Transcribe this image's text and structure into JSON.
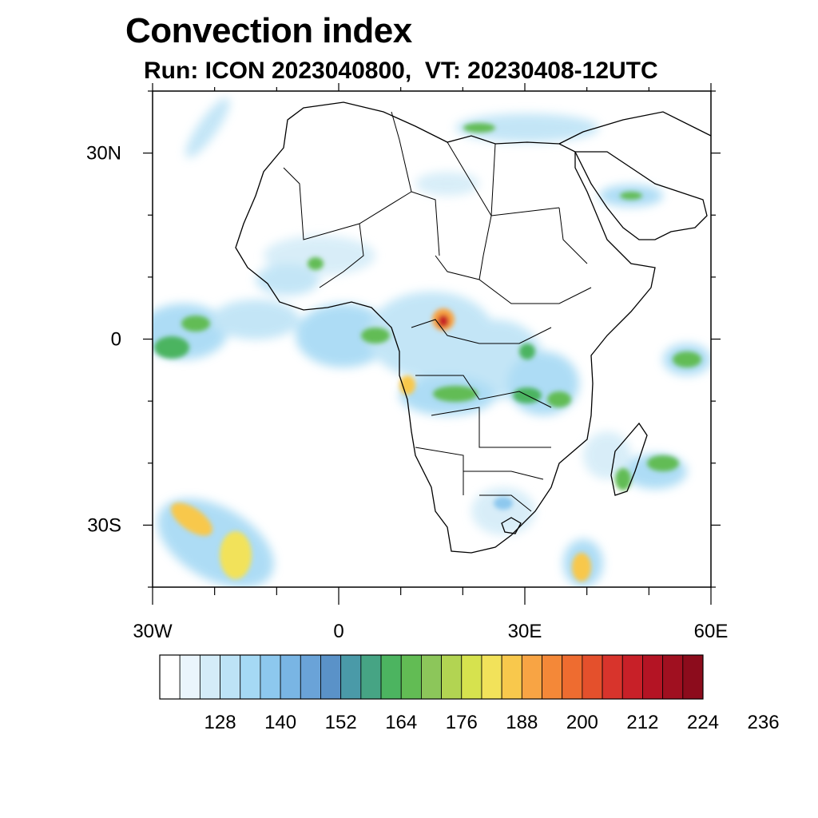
{
  "title": "Convection index",
  "subtitle": "Run: ICON 2023040800,  VT: 20230408-12UTC",
  "map": {
    "extent": {
      "lon": [
        -30,
        60
      ],
      "lat": [
        -40,
        40
      ]
    },
    "lat_ticks": [
      {
        "value": 30,
        "label": "30N"
      },
      {
        "value": 0,
        "label": "0"
      },
      {
        "value": -30,
        "label": "30S"
      }
    ],
    "lon_ticks": [
      {
        "value": -30,
        "label": "30W"
      },
      {
        "value": 0,
        "label": "0"
      },
      {
        "value": 30,
        "label": "30E"
      },
      {
        "value": 60,
        "label": "60E"
      }
    ]
  },
  "colorbar": {
    "labels": [
      "128",
      "140",
      "152",
      "164",
      "176",
      "188",
      "200",
      "212",
      "224",
      "236"
    ],
    "colors": [
      "#ffffff",
      "#eaf5fc",
      "#d4ecf8",
      "#bde3f6",
      "#a5d9f4",
      "#8dc8ee",
      "#79b5e4",
      "#6aa3d8",
      "#5a92c8",
      "#4a9aa8",
      "#46a484",
      "#4cb460",
      "#62bc54",
      "#8cc65a",
      "#b2d452",
      "#d6e24e",
      "#f2e25a",
      "#f8c84c",
      "#f8a444",
      "#f48838",
      "#ee6c30",
      "#e4502c",
      "#d8342c",
      "#c82028",
      "#b41424",
      "#a01020",
      "#8c0c1c"
    ]
  }
}
